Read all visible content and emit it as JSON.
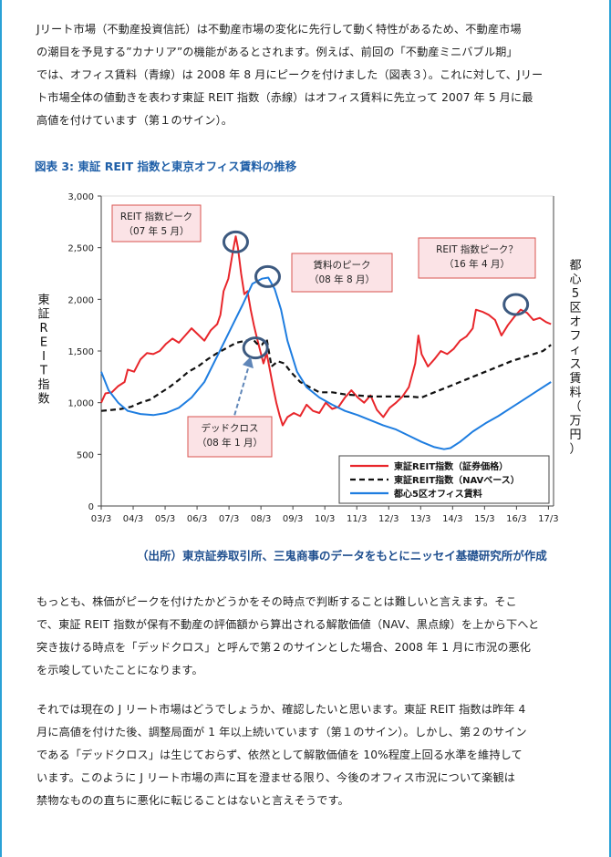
{
  "paragraphs": {
    "intro": [
      "Jリート市場（不動産投資信託）は不動産市場の変化に先行して動く特性があるため、不動産市場",
      "の潮目を予見する”カナリア”の機能があるとされます。例えば、前回の「不動産ミニバブル期」",
      "では、オフィス賃料（青線）は 2008 年 8 月にピークを付けました（図表３）。これに対して、Jリー",
      "ト市場全体の値動きを表わす東証 REIT 指数（赤線）はオフィス賃料に先立って 2007 年 5 月に最",
      "高値を付けています（第１のサイン）。"
    ],
    "middle": [
      "もっとも、株価がピークを付けたかどうかをその時点で判断することは難しいと言えます。そこ",
      "で、東証 REIT 指数が保有不動産の評価額から算出される解散価値（NAV、黒点線）を上から下へと",
      "突き抜ける時点を「デッドクロス」と呼んで第２のサインとした場合、2008 年 1 月に市況の悪化",
      "を示唆していたことになります。"
    ],
    "last": [
      "それでは現在の J リート市場はどうでしょうか、確認したいと思います。東証 REIT 指数は昨年 4",
      "月に高値を付けた後、調整局面が 1 年以上続いています（第１のサイン）。しかし、第２のサイン",
      "である「デッドクロス」は生じておらず、依然として解散価値を 10%程度上回る水準を維持して",
      "います。このように J リート市場の声に耳を澄ませる限り、今後のオフィス市況について楽観は",
      "禁物なものの直ちに悪化に転じることはないと言えそうです。"
    ]
  },
  "figure": {
    "title": "図表 3: 東証 REIT 指数と東京オフィス賃料の推移",
    "source": "（出所）東京証券取引所、三鬼商事のデータをもとにニッセイ基礎研究所が作成"
  },
  "chart_data": {
    "type": "line",
    "ylabel_left": "東証REIT指数",
    "ylabel_right": "都心5区オフィス賃料（万円）",
    "ylim": [
      0,
      3000
    ],
    "yticks": [
      "0",
      "500",
      "1,000",
      "1,500",
      "2,000",
      "2,500",
      "3,000"
    ],
    "xlim": [
      2003.17,
      2017.33
    ],
    "xticks": [
      {
        "label": "03/3",
        "x": 2003.17
      },
      {
        "label": "04/3",
        "x": 2004.17
      },
      {
        "label": "05/3",
        "x": 2005.17
      },
      {
        "label": "06/3",
        "x": 2006.17
      },
      {
        "label": "07/3",
        "x": 2007.17
      },
      {
        "label": "08/3",
        "x": 2008.17
      },
      {
        "label": "09/3",
        "x": 2009.17
      },
      {
        "label": "10/3",
        "x": 2010.17
      },
      {
        "label": "11/3",
        "x": 2011.17
      },
      {
        "label": "12/3",
        "x": 2012.17
      },
      {
        "label": "13/3",
        "x": 2013.17
      },
      {
        "label": "14/3",
        "x": 2014.17
      },
      {
        "label": "15/3",
        "x": 2015.17
      },
      {
        "label": "16/3",
        "x": 2016.17
      },
      {
        "label": "17/3",
        "x": 2017.17
      }
    ],
    "grid": false,
    "legend_position": "bottom-right",
    "series": [
      {
        "name": "東証REIT指数（証券価格）",
        "color": "#e8262b",
        "dash": "solid",
        "points": [
          [
            2003.17,
            1000
          ],
          [
            2003.3,
            1090
          ],
          [
            2003.5,
            1100
          ],
          [
            2003.7,
            1160
          ],
          [
            2003.9,
            1200
          ],
          [
            2004.0,
            1320
          ],
          [
            2004.2,
            1300
          ],
          [
            2004.4,
            1420
          ],
          [
            2004.6,
            1480
          ],
          [
            2004.8,
            1470
          ],
          [
            2005.0,
            1500
          ],
          [
            2005.2,
            1570
          ],
          [
            2005.4,
            1620
          ],
          [
            2005.6,
            1580
          ],
          [
            2005.8,
            1650
          ],
          [
            2006.0,
            1720
          ],
          [
            2006.2,
            1660
          ],
          [
            2006.4,
            1600
          ],
          [
            2006.6,
            1700
          ],
          [
            2006.8,
            1760
          ],
          [
            2006.9,
            1850
          ],
          [
            2007.0,
            2080
          ],
          [
            2007.15,
            2200
          ],
          [
            2007.3,
            2480
          ],
          [
            2007.38,
            2610
          ],
          [
            2007.45,
            2500
          ],
          [
            2007.55,
            2250
          ],
          [
            2007.65,
            2050
          ],
          [
            2007.75,
            2080
          ],
          [
            2007.85,
            1900
          ],
          [
            2007.95,
            1750
          ],
          [
            2008.05,
            1620
          ],
          [
            2008.15,
            1500
          ],
          [
            2008.25,
            1380
          ],
          [
            2008.35,
            1480
          ],
          [
            2008.45,
            1320
          ],
          [
            2008.55,
            1150
          ],
          [
            2008.65,
            1000
          ],
          [
            2008.75,
            880
          ],
          [
            2008.85,
            780
          ],
          [
            2009.0,
            860
          ],
          [
            2009.2,
            900
          ],
          [
            2009.4,
            870
          ],
          [
            2009.6,
            980
          ],
          [
            2009.8,
            920
          ],
          [
            2010.0,
            900
          ],
          [
            2010.2,
            1000
          ],
          [
            2010.4,
            940
          ],
          [
            2010.6,
            960
          ],
          [
            2010.8,
            1050
          ],
          [
            2011.0,
            1120
          ],
          [
            2011.2,
            1050
          ],
          [
            2011.4,
            1000
          ],
          [
            2011.6,
            1070
          ],
          [
            2011.8,
            930
          ],
          [
            2012.0,
            860
          ],
          [
            2012.2,
            950
          ],
          [
            2012.4,
            1000
          ],
          [
            2012.6,
            1060
          ],
          [
            2012.8,
            1150
          ],
          [
            2013.0,
            1380
          ],
          [
            2013.1,
            1650
          ],
          [
            2013.2,
            1470
          ],
          [
            2013.4,
            1350
          ],
          [
            2013.6,
            1420
          ],
          [
            2013.8,
            1500
          ],
          [
            2014.0,
            1470
          ],
          [
            2014.2,
            1520
          ],
          [
            2014.4,
            1600
          ],
          [
            2014.6,
            1640
          ],
          [
            2014.8,
            1720
          ],
          [
            2014.9,
            1900
          ],
          [
            2015.1,
            1880
          ],
          [
            2015.3,
            1850
          ],
          [
            2015.5,
            1800
          ],
          [
            2015.7,
            1650
          ],
          [
            2015.9,
            1750
          ],
          [
            2016.1,
            1830
          ],
          [
            2016.3,
            1900
          ],
          [
            2016.5,
            1870
          ],
          [
            2016.7,
            1800
          ],
          [
            2016.9,
            1820
          ],
          [
            2017.1,
            1780
          ],
          [
            2017.25,
            1760
          ]
        ]
      },
      {
        "name": "東証REIT指数（NAVベース）",
        "color": "#111111",
        "dash": "dashed",
        "points": [
          [
            2003.17,
            920
          ],
          [
            2003.5,
            930
          ],
          [
            2003.8,
            940
          ],
          [
            2004.1,
            960
          ],
          [
            2004.4,
            1000
          ],
          [
            2004.7,
            1030
          ],
          [
            2005.0,
            1090
          ],
          [
            2005.3,
            1150
          ],
          [
            2005.6,
            1220
          ],
          [
            2005.9,
            1300
          ],
          [
            2006.2,
            1350
          ],
          [
            2006.5,
            1420
          ],
          [
            2006.8,
            1480
          ],
          [
            2007.1,
            1530
          ],
          [
            2007.4,
            1580
          ],
          [
            2007.7,
            1600
          ],
          [
            2007.9,
            1620
          ],
          [
            2008.05,
            1570
          ],
          [
            2008.2,
            1560
          ],
          [
            2008.35,
            1620
          ],
          [
            2008.5,
            1350
          ],
          [
            2008.7,
            1400
          ],
          [
            2008.9,
            1380
          ],
          [
            2009.1,
            1300
          ],
          [
            2009.4,
            1200
          ],
          [
            2009.7,
            1150
          ],
          [
            2010.0,
            1100
          ],
          [
            2010.4,
            1100
          ],
          [
            2010.8,
            1080
          ],
          [
            2011.2,
            1070
          ],
          [
            2011.6,
            1060
          ],
          [
            2012.0,
            1060
          ],
          [
            2012.4,
            1060
          ],
          [
            2012.8,
            1060
          ],
          [
            2013.2,
            1050
          ],
          [
            2013.6,
            1100
          ],
          [
            2014.0,
            1150
          ],
          [
            2014.4,
            1200
          ],
          [
            2014.8,
            1250
          ],
          [
            2015.2,
            1300
          ],
          [
            2015.6,
            1350
          ],
          [
            2016.0,
            1400
          ],
          [
            2016.4,
            1440
          ],
          [
            2016.8,
            1480
          ],
          [
            2017.0,
            1500
          ],
          [
            2017.25,
            1560
          ]
        ]
      },
      {
        "name": "都心5区オフィス賃料",
        "color": "#1e7de0",
        "dash": "solid",
        "points": [
          [
            2003.17,
            1300
          ],
          [
            2003.4,
            1120
          ],
          [
            2003.7,
            1000
          ],
          [
            2004.0,
            920
          ],
          [
            2004.4,
            890
          ],
          [
            2004.8,
            880
          ],
          [
            2005.2,
            900
          ],
          [
            2005.6,
            950
          ],
          [
            2006.0,
            1050
          ],
          [
            2006.4,
            1200
          ],
          [
            2006.8,
            1450
          ],
          [
            2007.2,
            1700
          ],
          [
            2007.6,
            1950
          ],
          [
            2007.9,
            2150
          ],
          [
            2008.2,
            2200
          ],
          [
            2008.4,
            2210
          ],
          [
            2008.6,
            2100
          ],
          [
            2008.8,
            1900
          ],
          [
            2009.0,
            1600
          ],
          [
            2009.3,
            1300
          ],
          [
            2009.6,
            1150
          ],
          [
            2010.0,
            1050
          ],
          [
            2010.4,
            980
          ],
          [
            2010.8,
            920
          ],
          [
            2011.2,
            880
          ],
          [
            2011.6,
            830
          ],
          [
            2012.0,
            780
          ],
          [
            2012.4,
            740
          ],
          [
            2012.8,
            680
          ],
          [
            2013.2,
            620
          ],
          [
            2013.6,
            570
          ],
          [
            2013.9,
            550
          ],
          [
            2014.1,
            560
          ],
          [
            2014.4,
            620
          ],
          [
            2014.8,
            720
          ],
          [
            2015.2,
            800
          ],
          [
            2015.6,
            870
          ],
          [
            2016.0,
            950
          ],
          [
            2016.4,
            1030
          ],
          [
            2016.8,
            1110
          ],
          [
            2017.25,
            1200
          ]
        ]
      }
    ],
    "annotations": [
      {
        "lines": [
          "REIT 指数ピーク",
          "（07 年 5 月）"
        ]
      },
      {
        "lines": [
          "賃料のピーク",
          "（08 年 8 月）"
        ]
      },
      {
        "lines": [
          "REIT 指数ピーク？",
          "（16 年 4 月）"
        ]
      },
      {
        "lines": [
          "デッドクロス",
          "（08 年 1 月）"
        ]
      }
    ]
  }
}
